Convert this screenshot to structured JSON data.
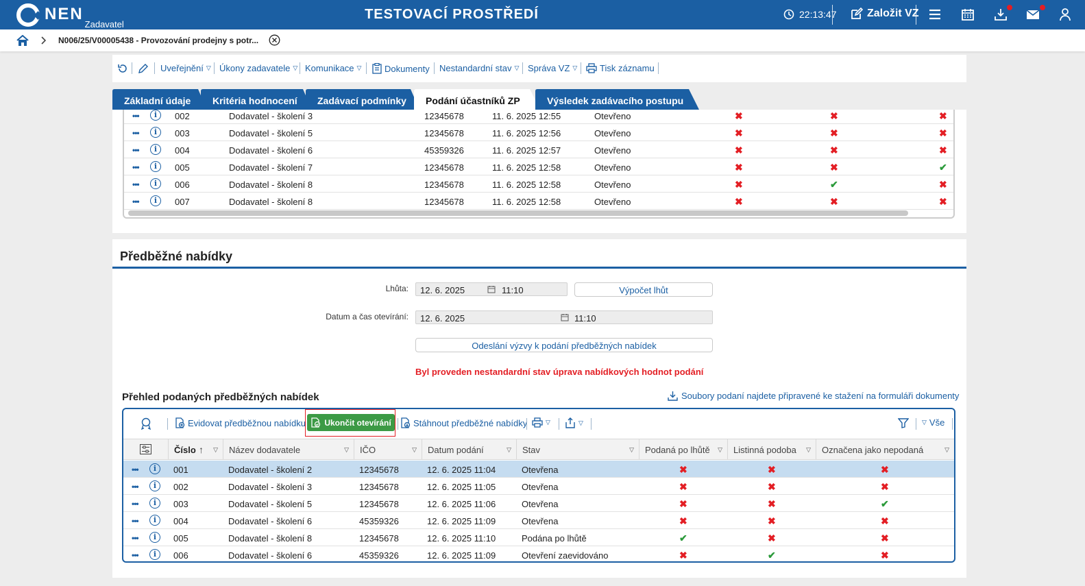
{
  "header": {
    "logo_text": "NEN",
    "logo_sub": "Zadavatel",
    "environment": "TESTOVACÍ PROSTŘEDÍ",
    "clock": "22:13:47",
    "create_label": "Založit VZ",
    "icons": [
      "clock-icon",
      "edit-icon",
      "menu-icon",
      "calendar-icon",
      "download-icon",
      "mail-icon",
      "user-icon"
    ]
  },
  "breadcrumb": {
    "text": "N006/25/V00005438 - Provozování prodejny s potr..."
  },
  "actions": {
    "uverejneni": "Uveřejnění",
    "ukony": "Úkony zadavatele",
    "komunikace": "Komunikace",
    "dokumenty": "Dokumenty",
    "nestandardni": "Nestandardní stav",
    "sprava": "Správa VZ",
    "tisk": "Tisk záznamu"
  },
  "tabs": [
    {
      "label": "Základní údaje"
    },
    {
      "label": "Kritéria hodnocení"
    },
    {
      "label": "Zadávací podmínky"
    },
    {
      "label": "Podání účastníků ZP"
    },
    {
      "label": "Výsledek zadávacího postupu"
    }
  ],
  "upper_rows": [
    {
      "num": "002",
      "name": "Dodavatel - školení 3",
      "ico": "12345678",
      "date": "11. 6. 2025 12:55",
      "state": "Otevřeno",
      "a": "x",
      "b": "x",
      "c": "x"
    },
    {
      "num": "003",
      "name": "Dodavatel - školení 5",
      "ico": "12345678",
      "date": "11. 6. 2025 12:56",
      "state": "Otevřeno",
      "a": "x",
      "b": "x",
      "c": "x"
    },
    {
      "num": "004",
      "name": "Dodavatel - školení 6",
      "ico": "45359326",
      "date": "11. 6. 2025 12:57",
      "state": "Otevřeno",
      "a": "x",
      "b": "x",
      "c": "x"
    },
    {
      "num": "005",
      "name": "Dodavatel - školení 7",
      "ico": "12345678",
      "date": "11. 6. 2025 12:58",
      "state": "Otevřeno",
      "a": "x",
      "b": "x",
      "c": "ok"
    },
    {
      "num": "006",
      "name": "Dodavatel - školení 8",
      "ico": "12345678",
      "date": "11. 6. 2025 12:58",
      "state": "Otevřeno",
      "a": "x",
      "b": "ok",
      "c": "x"
    },
    {
      "num": "007",
      "name": "Dodavatel - školení 8",
      "ico": "12345678",
      "date": "11. 6. 2025 12:58",
      "state": "Otevřeno",
      "a": "x",
      "b": "x",
      "c": "x"
    }
  ],
  "section": {
    "title": "Předběžné nabídky",
    "lhuta_label": "Lhůta:",
    "lhuta_date": "12. 6. 2025",
    "lhuta_time": "11:10",
    "vypocet_label": "Výpočet lhůt",
    "otevirani_label": "Datum a čas otevírání:",
    "otevirani_date": "12. 6. 2025",
    "otevirani_time": "11:10",
    "odeslani_label": "Odeslání výzvy k podání předběžných nabídek",
    "warning": "Byl proveden nestandardní stav úprava nabídkových hodnot podání",
    "list_title": "Přehled podaných předběžných nabídek",
    "soubory_link": "Soubory podaní najdete připravené ke stažení na formuláři dokumenty"
  },
  "grid_toolbar": {
    "evidovat": "Evidovat předběžnou nabídku",
    "ukoncit": "Ukončit otevírání",
    "stahnout": "Stáhnout předběžné nabídky",
    "filter_all": "Vše"
  },
  "grid_columns": {
    "cislo": "Číslo",
    "nazev": "Název dodavatele",
    "ico": "IČO",
    "datum": "Datum podání",
    "stav": "Stav",
    "podana": "Podaná po lhůtě",
    "listinna": "Listinná podoba",
    "oznacena": "Označena jako nepodaná"
  },
  "grid_rows": [
    {
      "num": "001",
      "name": "Dodavatel - školení 2",
      "ico": "12345678",
      "date": "12. 6. 2025 11:04",
      "state": "Otevřena",
      "a": "x",
      "b": "x",
      "c": "x",
      "selected": true
    },
    {
      "num": "002",
      "name": "Dodavatel - školení 3",
      "ico": "12345678",
      "date": "12. 6. 2025 11:05",
      "state": "Otevřena",
      "a": "x",
      "b": "x",
      "c": "x"
    },
    {
      "num": "003",
      "name": "Dodavatel - školení 5",
      "ico": "12345678",
      "date": "12. 6. 2025 11:06",
      "state": "Otevřena",
      "a": "x",
      "b": "x",
      "c": "ok"
    },
    {
      "num": "004",
      "name": "Dodavatel - školení 6",
      "ico": "45359326",
      "date": "12. 6. 2025 11:09",
      "state": "Otevřena",
      "a": "x",
      "b": "x",
      "c": "x"
    },
    {
      "num": "005",
      "name": "Dodavatel - školení 8",
      "ico": "12345678",
      "date": "12. 6. 2025 11:10",
      "state": "Podána po lhůtě",
      "a": "ok",
      "b": "x",
      "c": "x"
    },
    {
      "num": "006",
      "name": "Dodavatel - školení 6",
      "ico": "45359326",
      "date": "12. 6. 2025 11:09",
      "state": "Otevření zaevidováno",
      "a": "x",
      "b": "ok",
      "c": "x"
    }
  ],
  "colors": {
    "primary": "#1b5fa3",
    "tab_bg": "#1b5fa3",
    "green": "#3c9a45",
    "red": "#e31e24",
    "selected_row": "#c5dcf0"
  }
}
